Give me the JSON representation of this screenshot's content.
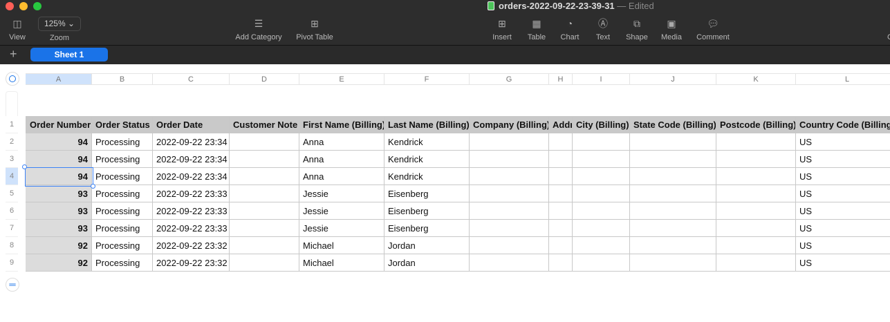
{
  "window": {
    "title": "orders-2022-09-22-23-39-31",
    "status": "— Edited"
  },
  "toolbar": {
    "view": "View",
    "zoom_value": "125%",
    "zoom": "Zoom",
    "add_category": "Add Category",
    "pivot_table": "Pivot Table",
    "insert": "Insert",
    "table": "Table",
    "chart": "Chart",
    "text": "Text",
    "shape": "Shape",
    "media": "Media",
    "comment": "Comment",
    "cut_off": "C"
  },
  "sheets": {
    "add": "+",
    "tabs": [
      {
        "label": "Sheet 1",
        "active": true
      }
    ]
  },
  "columns": [
    "A",
    "B",
    "C",
    "D",
    "E",
    "F",
    "G",
    "H",
    "I",
    "J",
    "K",
    "L"
  ],
  "rows": [
    "1",
    "2",
    "3",
    "4",
    "5",
    "6",
    "7",
    "8",
    "9"
  ],
  "headers": [
    "Order Number",
    "Order Status",
    "Order Date",
    "Customer Note",
    "First Name (Billing)",
    "Last Name (Billing)",
    "Company (Billing)",
    "Address",
    "City (Billing)",
    "State Code (Billing)",
    "Postcode (Billing)",
    "Country Code (Billing)"
  ],
  "data": [
    [
      "94",
      "Processing",
      "2022-09-22 23:34",
      "",
      "Anna",
      "Kendrick",
      "",
      "",
      "",
      "",
      "",
      "US"
    ],
    [
      "94",
      "Processing",
      "2022-09-22 23:34",
      "",
      "Anna",
      "Kendrick",
      "",
      "",
      "",
      "",
      "",
      "US"
    ],
    [
      "94",
      "Processing",
      "2022-09-22 23:34",
      "",
      "Anna",
      "Kendrick",
      "",
      "",
      "",
      "",
      "",
      "US"
    ],
    [
      "93",
      "Processing",
      "2022-09-22 23:33",
      "",
      "Jessie",
      "Eisenberg",
      "",
      "",
      "",
      "",
      "",
      "US"
    ],
    [
      "93",
      "Processing",
      "2022-09-22 23:33",
      "",
      "Jessie",
      "Eisenberg",
      "",
      "",
      "",
      "",
      "",
      "US"
    ],
    [
      "93",
      "Processing",
      "2022-09-22 23:33",
      "",
      "Jessie",
      "Eisenberg",
      "",
      "",
      "",
      "",
      "",
      "US"
    ],
    [
      "92",
      "Processing",
      "2022-09-22 23:32",
      "",
      "Michael",
      "Jordan",
      "",
      "",
      "",
      "",
      "",
      "US"
    ],
    [
      "92",
      "Processing",
      "2022-09-22 23:32",
      "",
      "Michael",
      "Jordan",
      "",
      "",
      "",
      "",
      "",
      "US"
    ]
  ],
  "selection": {
    "column": "A",
    "row": "4"
  },
  "colors": {
    "accent": "#1a73e8",
    "header_fill": "#c9c9c9",
    "toolbar": "#2d2d2d"
  }
}
